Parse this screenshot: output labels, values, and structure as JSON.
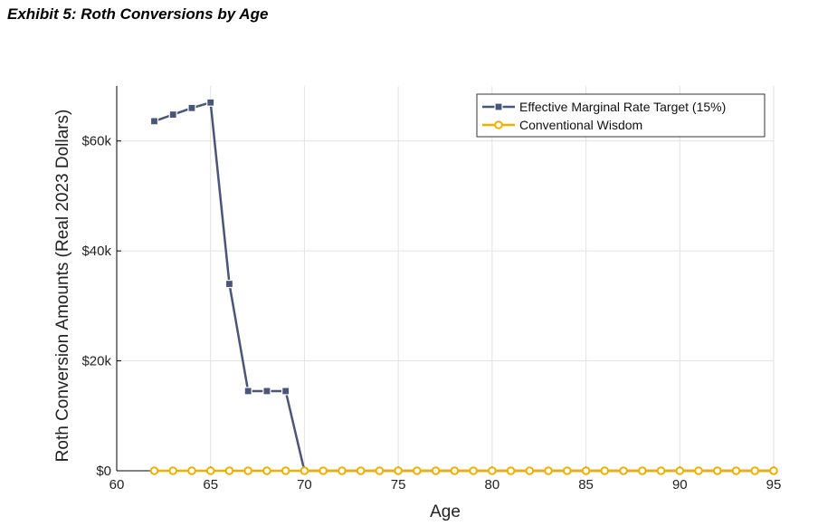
{
  "header": {
    "title": "Exhibit 5: Roth Conversions by Age"
  },
  "chart_data": {
    "type": "line",
    "xlabel": "Age",
    "ylabel": "Roth Conversion Amounts (Real 2023 Dollars)",
    "xlim": [
      60,
      95
    ],
    "ylim": [
      0,
      70000
    ],
    "xticks": [
      60,
      65,
      70,
      75,
      80,
      85,
      90,
      95
    ],
    "xtick_labels": [
      "60",
      "65",
      "70",
      "75",
      "80",
      "85",
      "90",
      "95"
    ],
    "yticks": [
      0,
      20000,
      40000,
      60000
    ],
    "ytick_labels": [
      "$0",
      "$20k",
      "$40k",
      "$60k"
    ],
    "grid": true,
    "legend_position": "top-right",
    "x": [
      62,
      63,
      64,
      65,
      66,
      67,
      68,
      69,
      70,
      71,
      72,
      73,
      74,
      75,
      76,
      77,
      78,
      79,
      80,
      81,
      82,
      83,
      84,
      85,
      86,
      87,
      88,
      89,
      90,
      91,
      92,
      93,
      94,
      95
    ],
    "series": [
      {
        "name": "Effective Marginal Rate Target (15%)",
        "color": "#4a5679",
        "marker": "square",
        "values": [
          63600,
          64800,
          66000,
          67000,
          34000,
          14500,
          14500,
          14500,
          0,
          0,
          0,
          0,
          0,
          0,
          0,
          0,
          0,
          0,
          0,
          0,
          0,
          0,
          0,
          0,
          0,
          0,
          0,
          0,
          0,
          0,
          0,
          0,
          0,
          0
        ]
      },
      {
        "name": "Conventional Wisdom",
        "color": "#f0b000",
        "marker": "circle",
        "values": [
          0,
          0,
          0,
          0,
          0,
          0,
          0,
          0,
          0,
          0,
          0,
          0,
          0,
          0,
          0,
          0,
          0,
          0,
          0,
          0,
          0,
          0,
          0,
          0,
          0,
          0,
          0,
          0,
          0,
          0,
          0,
          0,
          0,
          0
        ]
      }
    ]
  }
}
